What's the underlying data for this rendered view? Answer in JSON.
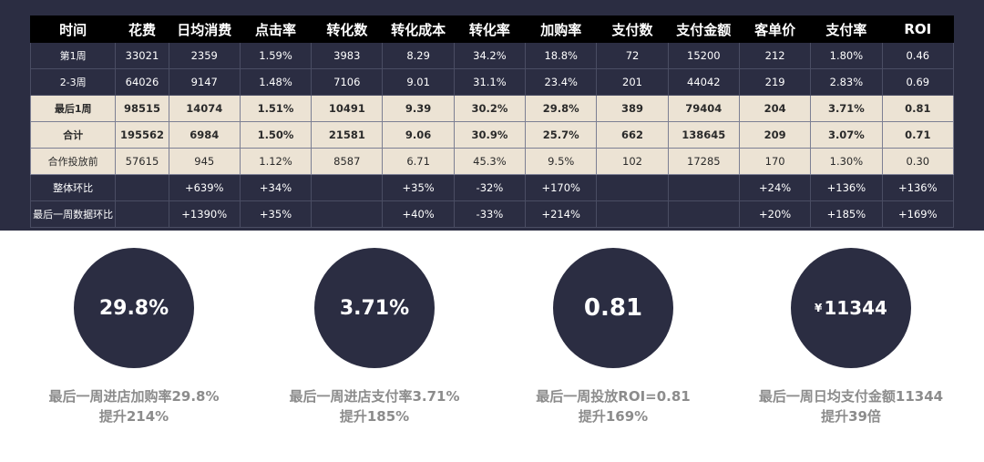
{
  "table": {
    "headers": [
      "时间",
      "花费",
      "日均消费",
      "点击率",
      "转化数",
      "转化成本",
      "转化率",
      "加购率",
      "支付数",
      "支付金额",
      "客单价",
      "支付率",
      "ROI"
    ],
    "rows": [
      {
        "style": "dark",
        "cells": [
          "第1周",
          "33021",
          "2359",
          "1.59%",
          "3983",
          "8.29",
          "34.2%",
          "18.8%",
          "72",
          "15200",
          "212",
          "1.80%",
          "0.46"
        ]
      },
      {
        "style": "dark",
        "cells": [
          "2-3周",
          "64026",
          "9147",
          "1.48%",
          "7106",
          "9.01",
          "31.1%",
          "23.4%",
          "201",
          "44042",
          "219",
          "2.83%",
          "0.69"
        ]
      },
      {
        "style": "light bold",
        "cells": [
          "最后1周",
          "98515",
          "14074",
          "1.51%",
          "10491",
          "9.39",
          "30.2%",
          "29.8%",
          "389",
          "79404",
          "204",
          "3.71%",
          "0.81"
        ]
      },
      {
        "style": "light bold",
        "cells": [
          "合计",
          "195562",
          "6984",
          "1.50%",
          "21581",
          "9.06",
          "30.9%",
          "25.7%",
          "662",
          "138645",
          "209",
          "3.07%",
          "0.71"
        ]
      },
      {
        "style": "light",
        "cells": [
          "合作投放前",
          "57615",
          "945",
          "1.12%",
          "8587",
          "6.71",
          "45.3%",
          "9.5%",
          "102",
          "17285",
          "170",
          "1.30%",
          "0.30"
        ]
      },
      {
        "style": "dark",
        "cells": [
          "整体环比",
          "",
          "+639%",
          "+34%",
          "",
          "+35%",
          "-32%",
          "+170%",
          "",
          "",
          "+24%",
          "+136%",
          "+136%"
        ]
      },
      {
        "style": "dark",
        "cells": [
          "最后一周数据环比",
          "",
          "+1390%",
          "+35%",
          "",
          "+40%",
          "-33%",
          "+214%",
          "",
          "",
          "+20%",
          "+185%",
          "+169%"
        ]
      }
    ]
  },
  "kpis": [
    {
      "value": "29.8%",
      "caption_line1": "最后一周进店加购率29.8%",
      "caption_line2": "提升214%"
    },
    {
      "value": "3.71%",
      "caption_line1": "最后一周进店支付率3.71%",
      "caption_line2": "提升185%"
    },
    {
      "value": "0.81",
      "caption_line1": "最后一周投放ROI=0.81",
      "caption_line2": "提升169%"
    },
    {
      "currency": "¥",
      "value": "11344",
      "caption_line1": "最后一周日均支付金额11344",
      "caption_line2": "提升39倍"
    }
  ],
  "colors": {
    "panel": "#2b2d42",
    "header": "#000000",
    "highlight_row": "#ece3d4",
    "caption": "#8c8c8c"
  }
}
